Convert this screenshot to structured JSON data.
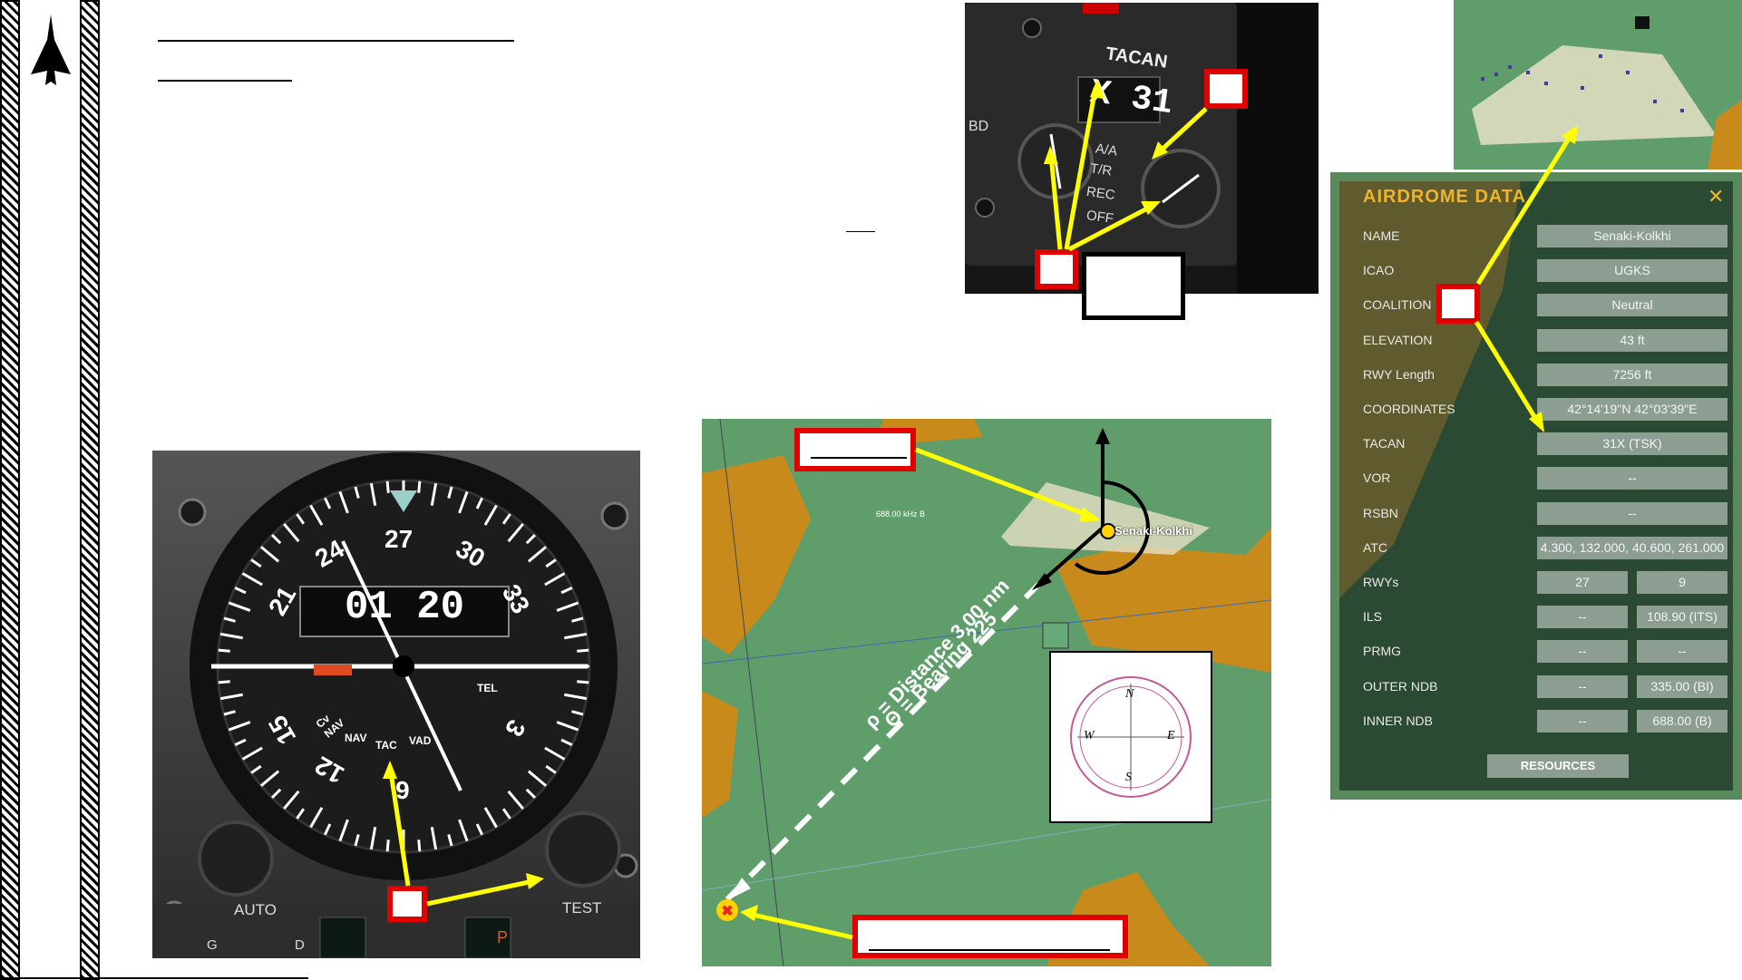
{
  "instrument": {
    "heading_digits": "01 20",
    "compass_labels": [
      "N",
      "3",
      "6",
      "E",
      "12",
      "15",
      "S",
      "21",
      "24",
      "W",
      "30",
      "33"
    ],
    "mode_labels": [
      "Cv NAV",
      "NAV",
      "TAC",
      "VAD",
      "TEL"
    ],
    "bottom_labels": [
      "AUTO",
      "TEST",
      "G",
      "D",
      "P"
    ]
  },
  "tacan_panel": {
    "title": "TACAN",
    "channel": "X 31",
    "modes": [
      "A/A",
      "T/R",
      "REC",
      "OFF"
    ],
    "side_label": "BD"
  },
  "map": {
    "airfield_name": "Senaki-Kolkhi",
    "freq_note": "688.00 kHz B",
    "distance_text": "ρ = Distance 3.00 nm",
    "bearing_text": "Θ = Bearing 225",
    "compass_rose": {
      "n": "N",
      "s": "S",
      "e": "E",
      "w": "W"
    }
  },
  "airdrome": {
    "title": "AIRDROME DATA",
    "rows": [
      {
        "label": "NAME",
        "values": [
          "Senaki-Kolkhi"
        ]
      },
      {
        "label": "ICAO",
        "values": [
          "UGKS"
        ]
      },
      {
        "label": "COALITION",
        "values": [
          "Neutral"
        ]
      },
      {
        "label": "ELEVATION",
        "values": [
          "43 ft"
        ]
      },
      {
        "label": "RWY Length",
        "values": [
          "7256 ft"
        ]
      },
      {
        "label": "COORDINATES",
        "values": [
          "42°14'19\"N 42°03'39\"E"
        ]
      },
      {
        "label": "TACAN",
        "values": [
          "31X (TSK)"
        ]
      },
      {
        "label": "VOR",
        "values": [
          "--"
        ]
      },
      {
        "label": "RSBN",
        "values": [
          "--"
        ]
      },
      {
        "label": "ATC",
        "values": [
          "4.300, 132.000, 40.600, 261.000"
        ]
      },
      {
        "label": "RWYs",
        "values": [
          "27",
          "9"
        ]
      },
      {
        "label": "ILS",
        "values": [
          "--",
          "108.90 (ITS)"
        ]
      },
      {
        "label": "PRMG",
        "values": [
          "--",
          "--"
        ]
      },
      {
        "label": "OUTER NDB",
        "values": [
          "--",
          "335.00 (BI)"
        ]
      },
      {
        "label": "INNER NDB",
        "values": [
          "--",
          "688.00 (B)"
        ]
      }
    ],
    "resources_label": "RESOURCES"
  },
  "colors": {
    "callout_red": "#e00000",
    "arrow_yellow": "#ffff00",
    "map_green": "#5f9e6b",
    "map_orange": "#c98a1c",
    "panel_title": "#f0b429"
  }
}
